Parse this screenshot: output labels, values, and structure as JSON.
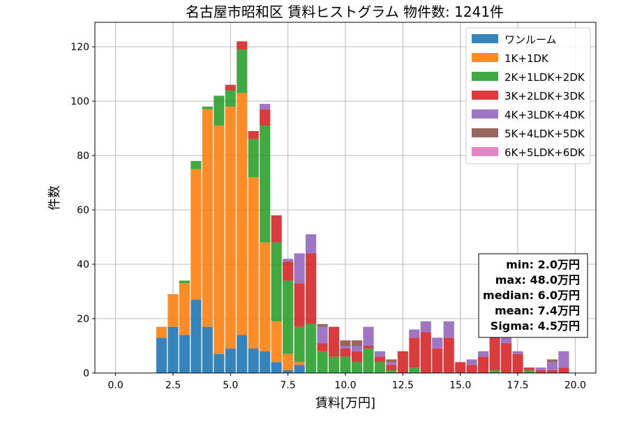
{
  "chart_data": {
    "type": "bar",
    "stacked": true,
    "title": "名古屋市昭和区 賃料ヒストグラム 物件数: 1241件",
    "xlabel": "賃料[万円]",
    "ylabel": "件数",
    "xlim": [
      -0.9,
      20.9
    ],
    "ylim": [
      0,
      129
    ],
    "xticks": [
      0.0,
      2.5,
      5.0,
      7.5,
      10.0,
      12.5,
      15.0,
      17.5,
      20.0
    ],
    "xtick_labels": [
      "0.0",
      "2.5",
      "5.0",
      "7.5",
      "10.0",
      "12.5",
      "15.0",
      "17.5",
      "20.0"
    ],
    "yticks": [
      0,
      20,
      40,
      60,
      80,
      100,
      120
    ],
    "ytick_labels": [
      "0",
      "20",
      "40",
      "60",
      "80",
      "100",
      "120"
    ],
    "grid": true,
    "legend_position": "top-right",
    "bin_width": 0.5,
    "bins": [
      2.0,
      2.5,
      3.0,
      3.5,
      4.0,
      4.5,
      5.0,
      5.5,
      6.0,
      6.5,
      7.0,
      7.5,
      8.0,
      8.5,
      9.0,
      9.5,
      10.0,
      10.5,
      11.0,
      11.5,
      12.0,
      12.5,
      13.0,
      13.5,
      14.0,
      14.5,
      15.0,
      15.5,
      16.0,
      16.5,
      17.0,
      17.5,
      18.0,
      18.5,
      19.0,
      19.5
    ],
    "series": [
      {
        "name": "ワンルーム",
        "color": "#1f77b4",
        "values": [
          13,
          17,
          14,
          27,
          17,
          7,
          9,
          14,
          9,
          8,
          4,
          1,
          3,
          0,
          0,
          0,
          0,
          0,
          0,
          0,
          0,
          0,
          0,
          0,
          0,
          0,
          0,
          0,
          0,
          0,
          0,
          0,
          0,
          0,
          0,
          0
        ]
      },
      {
        "name": "1K+1DK",
        "color": "#ff7f0e",
        "values": [
          4,
          12,
          19,
          48,
          80,
          84,
          89,
          89,
          63,
          40,
          15,
          6,
          1,
          0,
          0,
          0,
          0,
          0,
          0,
          0,
          0,
          0,
          0,
          0,
          0,
          0,
          0,
          0,
          0,
          0,
          0,
          0,
          0,
          0,
          0,
          0
        ]
      },
      {
        "name": "2K+1LDK+2DK",
        "color": "#2ca02c",
        "values": [
          0,
          0,
          1,
          3,
          1,
          11,
          6,
          16,
          14,
          43,
          29,
          27,
          13,
          18,
          8,
          6,
          6,
          4,
          9,
          4,
          1,
          0,
          2,
          0,
          0,
          0,
          0,
          0,
          0,
          1,
          0,
          0,
          1,
          0,
          0,
          0
        ]
      },
      {
        "name": "3K+2LDK+3DK",
        "color": "#d62728",
        "values": [
          0,
          0,
          0,
          0,
          0,
          0,
          2,
          3,
          3,
          6,
          10,
          7,
          16,
          26,
          3,
          11,
          3,
          4,
          1,
          2,
          2,
          8,
          11,
          15,
          9,
          13,
          4,
          3,
          6,
          15,
          11,
          7,
          1,
          1,
          1,
          2
        ]
      },
      {
        "name": "4K+3LDK+4DK",
        "color": "#9467bd",
        "values": [
          0,
          0,
          0,
          0,
          0,
          0,
          0,
          0,
          0,
          2,
          0,
          1,
          11,
          7,
          6,
          0,
          1,
          2,
          7,
          2,
          1,
          0,
          3,
          4,
          4,
          6,
          0,
          2,
          2,
          0,
          2,
          1,
          0,
          1,
          3,
          6
        ]
      },
      {
        "name": "5K+4LDK+5DK",
        "color": "#8c564b",
        "values": [
          0,
          0,
          0,
          0,
          0,
          0,
          0,
          0,
          0,
          0,
          0,
          0,
          0,
          0,
          1,
          0,
          2,
          2,
          0,
          0,
          1,
          0,
          0,
          0,
          0,
          0,
          0,
          0,
          0,
          0,
          0,
          0,
          0,
          0,
          1,
          0
        ]
      },
      {
        "name": "6K+5LDK+6DK",
        "color": "#e377c2",
        "values": [
          0,
          0,
          0,
          0,
          0,
          0,
          0,
          0,
          0,
          0,
          0,
          0,
          0,
          0,
          0,
          0,
          0,
          0,
          0,
          0,
          0,
          0,
          0,
          0,
          0,
          0,
          0,
          0,
          0,
          0,
          0,
          0,
          0,
          0,
          0,
          0
        ]
      }
    ],
    "stats_box": [
      "min: 2.0万円",
      "max: 48.0万円",
      "median: 6.0万円",
      "mean: 7.4万円",
      "Sigma: 4.5万円"
    ]
  }
}
